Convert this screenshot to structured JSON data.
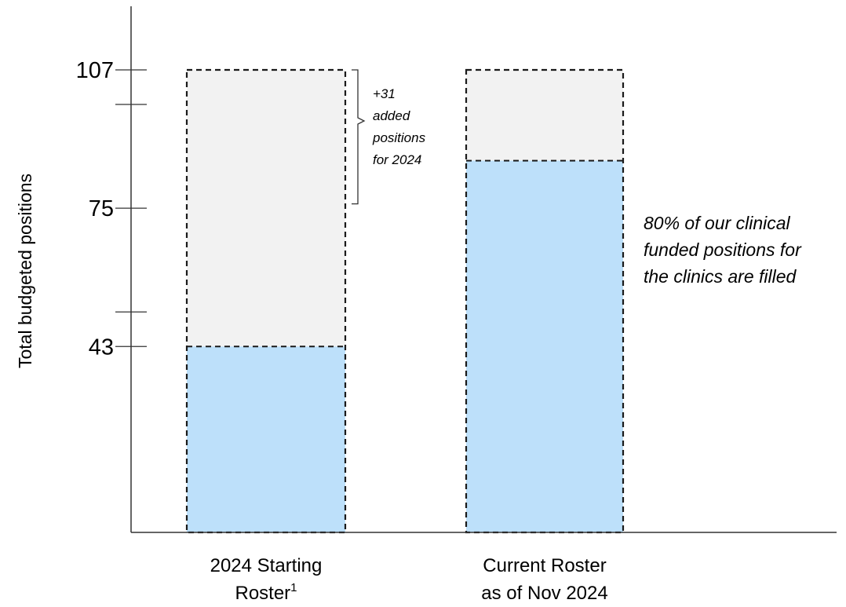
{
  "chart_data": {
    "type": "bar",
    "ylabel": "Total budgeted positions",
    "y_ticks": [
      43,
      75,
      107
    ],
    "y_minor_ticks": [
      51,
      99
    ],
    "ylim": [
      0,
      125
    ],
    "categories": [
      {
        "label_line1": "2024 Starting",
        "label_line2": "Roster",
        "footnote": "1"
      },
      {
        "label_line1": "Current Roster",
        "label_line2": "as of Nov 2024",
        "footnote": ""
      }
    ],
    "series": [
      {
        "key": "filled",
        "values": [
          43,
          86
        ]
      },
      {
        "key": "budgeted",
        "values": [
          107,
          107
        ]
      }
    ],
    "annotations": {
      "added": {
        "lines": [
          "+31",
          "added",
          "positions",
          "for 2024"
        ],
        "range": [
          76,
          107
        ]
      },
      "callout": {
        "lines": [
          "80% of our clinical",
          "funded positions for",
          "the clinics are filled"
        ]
      }
    },
    "colors": {
      "filled": "#bde0fa",
      "budgeted": "#f2f2f2",
      "outline": "#1a1a1a",
      "axis": "#333333"
    }
  }
}
